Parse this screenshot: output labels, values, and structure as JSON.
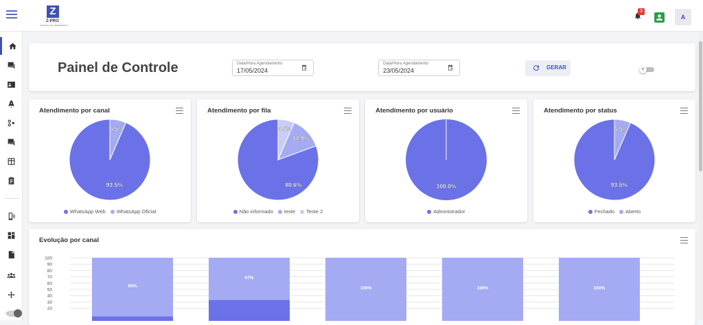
{
  "topbar": {
    "logo_text": "Z-PRO",
    "logo_subtext": "CENTRAL DE ATENDIMENTO",
    "notification_count": "3",
    "avatar_letter": "A"
  },
  "sidebar": {
    "items": [
      {
        "name": "home",
        "icon": "home-icon"
      },
      {
        "name": "chats",
        "icon": "chat-icon"
      },
      {
        "name": "contacts",
        "icon": "contact-card-icon"
      },
      {
        "name": "campaigns",
        "icon": "rocket-icon"
      },
      {
        "name": "flows",
        "icon": "connections-icon"
      },
      {
        "name": "messages",
        "icon": "message-icon"
      },
      {
        "name": "kanban",
        "icon": "board-icon"
      },
      {
        "name": "tasks",
        "icon": "clipboard-icon"
      },
      {
        "name": "channels",
        "icon": "phone-signal-icon"
      },
      {
        "name": "dashboard",
        "icon": "grid-icon"
      },
      {
        "name": "reports",
        "icon": "report-icon"
      },
      {
        "name": "users",
        "icon": "users-icon"
      },
      {
        "name": "integrations",
        "icon": "arrows-icon"
      }
    ]
  },
  "header": {
    "title": "Painel de Controle",
    "date_start_label": "Data/Hora Agendamento",
    "date_start_value": "17/05/2024",
    "date_end_label": "Data/Hora Agendamento",
    "date_end_value": "23/05/2024",
    "generate_label": "GERAR"
  },
  "colors": {
    "primary": "#6b72e8",
    "secondary": "#a4abf2",
    "tertiary": "#c9cdf7",
    "accent": "#3f51b5"
  },
  "chart_data": [
    {
      "type": "pie",
      "title": "Atendimento por canal",
      "slices": [
        {
          "label": "WhatsApp Web",
          "value": 93.5,
          "display": "93.5%"
        },
        {
          "label": "WhatsApp Oficial",
          "value": 6.5,
          "display": "6.5%"
        }
      ]
    },
    {
      "type": "pie",
      "title": "Atendimento por fila",
      "slices": [
        {
          "label": "Não informado",
          "value": 80.6,
          "display": "80.6%"
        },
        {
          "label": "teste",
          "value": 12.9,
          "display": "12.9%"
        },
        {
          "label": "Teste 2",
          "value": 6.5,
          "display": "6.5%"
        }
      ]
    },
    {
      "type": "pie",
      "title": "Atendimento por usuário",
      "slices": [
        {
          "label": "Administrador",
          "value": 100.0,
          "display": "100.0%"
        }
      ]
    },
    {
      "type": "pie",
      "title": "Atendimento por status",
      "slices": [
        {
          "label": "Fechado",
          "value": 93.5,
          "display": "93.5%"
        },
        {
          "label": "Aberto",
          "value": 6.5,
          "display": "6.5%"
        }
      ]
    },
    {
      "type": "bar",
      "title": "Evolução por canal",
      "stacked": true,
      "ylim": [
        0,
        100
      ],
      "yticks": [
        100,
        90,
        80,
        70,
        60,
        50,
        40,
        30,
        20
      ],
      "grid": true,
      "bars": [
        {
          "light": 93,
          "dark": 7,
          "display": "93%"
        },
        {
          "light": 67,
          "dark": 33,
          "display": "67%"
        },
        {
          "light": 100,
          "dark": 0,
          "display": "100%"
        },
        {
          "light": 100,
          "dark": 0,
          "display": "100%"
        },
        {
          "light": 100,
          "dark": 0,
          "display": "100%"
        }
      ]
    }
  ]
}
